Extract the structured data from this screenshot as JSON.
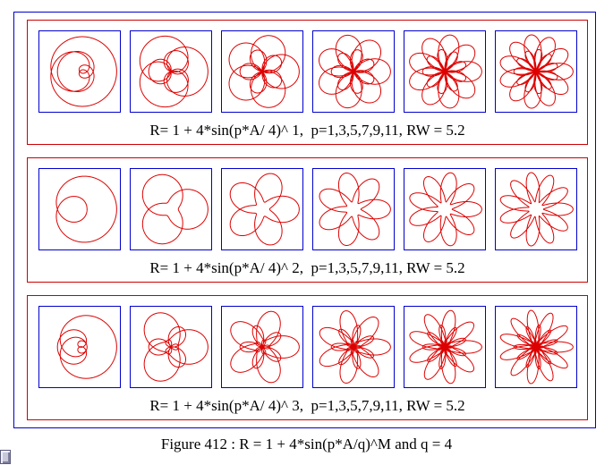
{
  "figure": {
    "caption": "Figure 412 : R = 1 + 4*sin(p*A/q)^M and q = 4"
  },
  "colors": {
    "curve": "#dd0000",
    "tile_border": "#0000cc",
    "panel_border": "#cc0000",
    "outer_border": "#0000cc"
  },
  "panels": [
    {
      "caption": "R= 1 + 4*sin(p*A/ 4)^ 1,  p=1,3,5,7,9,11, RW = 5.2",
      "M": 1,
      "q": 4,
      "p_values": [
        1,
        3,
        5,
        7,
        9,
        11
      ],
      "RW": 5.2
    },
    {
      "caption": "R= 1 + 4*sin(p*A/ 4)^ 2,  p=1,3,5,7,9,11, RW = 5.2",
      "M": 2,
      "q": 4,
      "p_values": [
        1,
        3,
        5,
        7,
        9,
        11
      ],
      "RW": 5.2
    },
    {
      "caption": "R= 1 + 4*sin(p*A/ 4)^ 3,  p=1,3,5,7,9,11, RW = 5.2",
      "M": 3,
      "q": 4,
      "p_values": [
        1,
        3,
        5,
        7,
        9,
        11
      ],
      "RW": 5.2
    }
  ]
}
